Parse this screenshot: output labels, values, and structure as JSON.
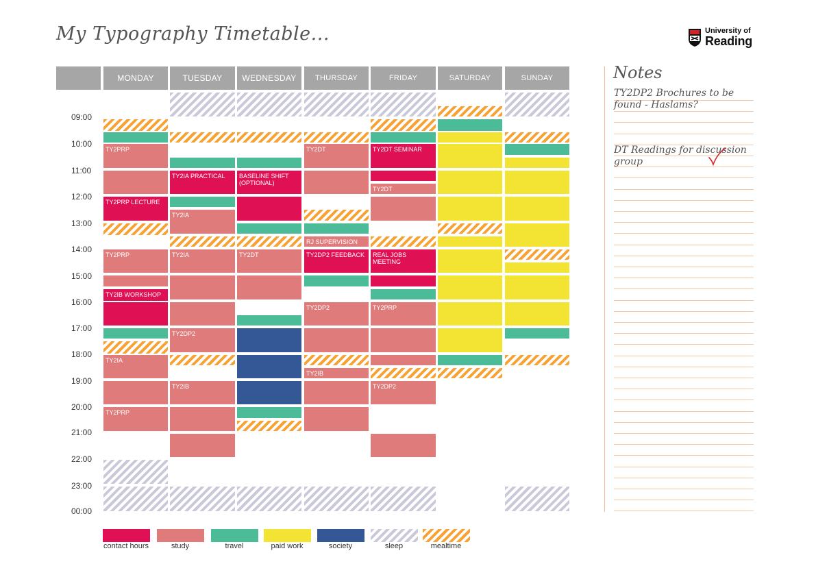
{
  "page": {
    "title": "My Typography Timetable..."
  },
  "logo": {
    "line1": "University of",
    "line2": "Reading"
  },
  "days": [
    "MONDAY",
    "TUESDAY",
    "WEDNESDAY",
    "THURSDAY",
    "FRIDAY",
    "SATURDAY",
    "SUNDAY"
  ],
  "times": [
    "09:00",
    "10:00",
    "11:00",
    "12:00",
    "13:00",
    "14:00",
    "15:00",
    "16:00",
    "17:00",
    "18:00",
    "19:00",
    "20:00",
    "21:00",
    "22:00",
    "23:00",
    "00:00"
  ],
  "colors": {
    "contact": "#e01055",
    "study": "#e07b7b",
    "travel": "#4cbb98",
    "paid": "#f3e433",
    "society": "#345795",
    "sleep": "#c9c9d9",
    "meal": "#f7a233"
  },
  "legend": [
    {
      "type": "contact",
      "label": "contact hours"
    },
    {
      "type": "study",
      "label": "study"
    },
    {
      "type": "travel",
      "label": "travel"
    },
    {
      "type": "paid",
      "label": "paid work"
    },
    {
      "type": "society",
      "label": "society"
    },
    {
      "type": "sleep",
      "label": "sleep"
    },
    {
      "type": "meal",
      "label": "mealtime"
    }
  ],
  "blocks": [
    {
      "day": 0,
      "type": "meal",
      "start": 9.1,
      "end": 9.55,
      "label": ""
    },
    {
      "day": 0,
      "type": "travel",
      "start": 9.6,
      "end": 10.0,
      "label": ""
    },
    {
      "day": 0,
      "type": "study",
      "start": 10.05,
      "end": 10.95,
      "label": "TY2PRP"
    },
    {
      "day": 0,
      "type": "study",
      "start": 11.05,
      "end": 11.95,
      "label": ""
    },
    {
      "day": 0,
      "type": "contact",
      "start": 12.05,
      "end": 12.95,
      "label": "TY2PRP LECTURE"
    },
    {
      "day": 0,
      "type": "meal",
      "start": 13.05,
      "end": 13.5,
      "label": ""
    },
    {
      "day": 0,
      "type": "study",
      "start": 14.05,
      "end": 14.95,
      "label": "TY2PRP"
    },
    {
      "day": 0,
      "type": "study",
      "start": 15.05,
      "end": 15.45,
      "label": ""
    },
    {
      "day": 0,
      "type": "contact",
      "start": 15.55,
      "end": 16.0,
      "label": "TY2IB WORKSHOP"
    },
    {
      "day": 0,
      "type": "contact",
      "start": 16.05,
      "end": 16.95,
      "label": ""
    },
    {
      "day": 0,
      "type": "travel",
      "start": 17.05,
      "end": 17.45,
      "label": ""
    },
    {
      "day": 0,
      "type": "meal",
      "start": 17.55,
      "end": 18.0,
      "label": ""
    },
    {
      "day": 0,
      "type": "study",
      "start": 18.05,
      "end": 18.95,
      "label": "TY2IA"
    },
    {
      "day": 0,
      "type": "study",
      "start": 19.05,
      "end": 19.95,
      "label": ""
    },
    {
      "day": 0,
      "type": "study",
      "start": 20.05,
      "end": 20.95,
      "label": "TY2PRP"
    },
    {
      "day": 0,
      "type": "sleep",
      "start": 22.05,
      "end": 22.95,
      "label": ""
    },
    {
      "day": 0,
      "type": "sleep",
      "start": 23.05,
      "end": 24.0,
      "label": ""
    },
    {
      "day": 1,
      "type": "sleep",
      "start": 8.1,
      "end": 9.0,
      "label": ""
    },
    {
      "day": 1,
      "type": "meal",
      "start": 9.6,
      "end": 10.0,
      "label": ""
    },
    {
      "day": 1,
      "type": "travel",
      "start": 10.55,
      "end": 10.95,
      "label": ""
    },
    {
      "day": 1,
      "type": "contact",
      "start": 11.05,
      "end": 11.95,
      "label": "TY2IA PRACTICAL"
    },
    {
      "day": 1,
      "type": "travel",
      "start": 12.05,
      "end": 12.45,
      "label": ""
    },
    {
      "day": 1,
      "type": "study",
      "start": 12.55,
      "end": 13.45,
      "label": "TY2IA"
    },
    {
      "day": 1,
      "type": "meal",
      "start": 13.55,
      "end": 13.95,
      "label": ""
    },
    {
      "day": 1,
      "type": "study",
      "start": 14.05,
      "end": 14.95,
      "label": "TY2IA"
    },
    {
      "day": 1,
      "type": "study",
      "start": 15.05,
      "end": 15.95,
      "label": ""
    },
    {
      "day": 1,
      "type": "study",
      "start": 16.05,
      "end": 16.95,
      "label": ""
    },
    {
      "day": 1,
      "type": "study",
      "start": 17.05,
      "end": 17.95,
      "label": "TY2DP2"
    },
    {
      "day": 1,
      "type": "meal",
      "start": 18.05,
      "end": 18.45,
      "label": ""
    },
    {
      "day": 1,
      "type": "study",
      "start": 19.05,
      "end": 19.95,
      "label": "TY2IB"
    },
    {
      "day": 1,
      "type": "study",
      "start": 20.05,
      "end": 20.95,
      "label": ""
    },
    {
      "day": 1,
      "type": "study",
      "start": 21.05,
      "end": 21.95,
      "label": ""
    },
    {
      "day": 1,
      "type": "sleep",
      "start": 23.05,
      "end": 24.0,
      "label": ""
    },
    {
      "day": 2,
      "type": "sleep",
      "start": 8.1,
      "end": 9.0,
      "label": ""
    },
    {
      "day": 2,
      "type": "meal",
      "start": 9.6,
      "end": 10.0,
      "label": ""
    },
    {
      "day": 2,
      "type": "travel",
      "start": 10.55,
      "end": 10.95,
      "label": ""
    },
    {
      "day": 2,
      "type": "contact",
      "start": 11.05,
      "end": 11.95,
      "label": "BASELINE SHIFT (OPTIONAL)"
    },
    {
      "day": 2,
      "type": "contact",
      "start": 12.05,
      "end": 12.95,
      "label": ""
    },
    {
      "day": 2,
      "type": "travel",
      "start": 13.05,
      "end": 13.45,
      "label": ""
    },
    {
      "day": 2,
      "type": "meal",
      "start": 13.55,
      "end": 13.95,
      "label": ""
    },
    {
      "day": 2,
      "type": "study",
      "start": 14.05,
      "end": 14.95,
      "label": "TY2DT"
    },
    {
      "day": 2,
      "type": "study",
      "start": 15.05,
      "end": 15.95,
      "label": ""
    },
    {
      "day": 2,
      "type": "travel",
      "start": 16.55,
      "end": 16.95,
      "label": ""
    },
    {
      "day": 2,
      "type": "society",
      "start": 17.05,
      "end": 17.95,
      "label": ""
    },
    {
      "day": 2,
      "type": "society",
      "start": 18.05,
      "end": 18.95,
      "label": ""
    },
    {
      "day": 2,
      "type": "society",
      "start": 19.05,
      "end": 19.95,
      "label": ""
    },
    {
      "day": 2,
      "type": "travel",
      "start": 20.05,
      "end": 20.45,
      "label": ""
    },
    {
      "day": 2,
      "type": "meal",
      "start": 20.55,
      "end": 20.95,
      "label": ""
    },
    {
      "day": 2,
      "type": "sleep",
      "start": 23.05,
      "end": 24.0,
      "label": ""
    },
    {
      "day": 3,
      "type": "sleep",
      "start": 8.1,
      "end": 9.0,
      "label": ""
    },
    {
      "day": 3,
      "type": "meal",
      "start": 9.6,
      "end": 10.0,
      "label": ""
    },
    {
      "day": 3,
      "type": "study",
      "start": 10.05,
      "end": 10.95,
      "label": "TY2DT"
    },
    {
      "day": 3,
      "type": "study",
      "start": 11.05,
      "end": 11.95,
      "label": ""
    },
    {
      "day": 3,
      "type": "meal",
      "start": 12.55,
      "end": 12.95,
      "label": ""
    },
    {
      "day": 3,
      "type": "travel",
      "start": 13.05,
      "end": 13.45,
      "label": ""
    },
    {
      "day": 3,
      "type": "study",
      "start": 13.55,
      "end": 13.95,
      "label": "RJ SUPERVISION"
    },
    {
      "day": 3,
      "type": "contact",
      "start": 14.05,
      "end": 14.95,
      "label": "TY2DP2 FEEDBACK"
    },
    {
      "day": 3,
      "type": "travel",
      "start": 15.05,
      "end": 15.45,
      "label": ""
    },
    {
      "day": 3,
      "type": "study",
      "start": 16.05,
      "end": 16.95,
      "label": "TY2DP2"
    },
    {
      "day": 3,
      "type": "study",
      "start": 17.05,
      "end": 17.95,
      "label": ""
    },
    {
      "day": 3,
      "type": "meal",
      "start": 18.05,
      "end": 18.45,
      "label": ""
    },
    {
      "day": 3,
      "type": "study",
      "start": 18.55,
      "end": 18.95,
      "label": "TY2IB"
    },
    {
      "day": 3,
      "type": "study",
      "start": 19.05,
      "end": 19.95,
      "label": ""
    },
    {
      "day": 3,
      "type": "study",
      "start": 20.05,
      "end": 20.95,
      "label": ""
    },
    {
      "day": 3,
      "type": "sleep",
      "start": 23.05,
      "end": 24.0,
      "label": ""
    },
    {
      "day": 4,
      "type": "sleep",
      "start": 8.1,
      "end": 9.0,
      "label": ""
    },
    {
      "day": 4,
      "type": "meal",
      "start": 9.1,
      "end": 9.55,
      "label": ""
    },
    {
      "day": 4,
      "type": "travel",
      "start": 9.6,
      "end": 10.0,
      "label": ""
    },
    {
      "day": 4,
      "type": "contact",
      "start": 10.05,
      "end": 10.95,
      "label": "TY2DT SEMINAR"
    },
    {
      "day": 4,
      "type": "contact",
      "start": 11.05,
      "end": 11.45,
      "label": ""
    },
    {
      "day": 4,
      "type": "study",
      "start": 11.55,
      "end": 11.95,
      "label": "TY2DT"
    },
    {
      "day": 4,
      "type": "study",
      "start": 12.05,
      "end": 12.95,
      "label": ""
    },
    {
      "day": 4,
      "type": "meal",
      "start": 13.55,
      "end": 13.95,
      "label": ""
    },
    {
      "day": 4,
      "type": "contact",
      "start": 14.05,
      "end": 14.95,
      "label": "REAL JOBS MEETING"
    },
    {
      "day": 4,
      "type": "contact",
      "start": 15.05,
      "end": 15.45,
      "label": ""
    },
    {
      "day": 4,
      "type": "travel",
      "start": 15.55,
      "end": 15.95,
      "label": ""
    },
    {
      "day": 4,
      "type": "study",
      "start": 16.05,
      "end": 16.95,
      "label": "TY2PRP"
    },
    {
      "day": 4,
      "type": "study",
      "start": 17.05,
      "end": 17.95,
      "label": ""
    },
    {
      "day": 4,
      "type": "study",
      "start": 18.05,
      "end": 18.45,
      "label": ""
    },
    {
      "day": 4,
      "type": "meal",
      "start": 18.55,
      "end": 18.95,
      "label": ""
    },
    {
      "day": 4,
      "type": "study",
      "start": 19.05,
      "end": 19.95,
      "label": "TY2DP2"
    },
    {
      "day": 4,
      "type": "study",
      "start": 21.05,
      "end": 21.95,
      "label": ""
    },
    {
      "day": 4,
      "type": "sleep",
      "start": 23.05,
      "end": 24.0,
      "label": ""
    },
    {
      "day": 5,
      "type": "meal",
      "start": 8.6,
      "end": 9.0,
      "label": ""
    },
    {
      "day": 5,
      "type": "travel",
      "start": 9.1,
      "end": 9.55,
      "label": ""
    },
    {
      "day": 5,
      "type": "paid",
      "start": 9.6,
      "end": 10.0,
      "label": ""
    },
    {
      "day": 5,
      "type": "paid",
      "start": 10.05,
      "end": 10.95,
      "label": ""
    },
    {
      "day": 5,
      "type": "paid",
      "start": 11.05,
      "end": 11.95,
      "label": ""
    },
    {
      "day": 5,
      "type": "paid",
      "start": 12.05,
      "end": 12.95,
      "label": ""
    },
    {
      "day": 5,
      "type": "meal",
      "start": 13.05,
      "end": 13.45,
      "label": ""
    },
    {
      "day": 5,
      "type": "paid",
      "start": 13.55,
      "end": 13.95,
      "label": ""
    },
    {
      "day": 5,
      "type": "paid",
      "start": 14.05,
      "end": 14.95,
      "label": ""
    },
    {
      "day": 5,
      "type": "paid",
      "start": 15.05,
      "end": 15.95,
      "label": ""
    },
    {
      "day": 5,
      "type": "paid",
      "start": 16.05,
      "end": 16.95,
      "label": ""
    },
    {
      "day": 5,
      "type": "paid",
      "start": 17.05,
      "end": 17.95,
      "label": ""
    },
    {
      "day": 5,
      "type": "travel",
      "start": 18.05,
      "end": 18.45,
      "label": ""
    },
    {
      "day": 5,
      "type": "meal",
      "start": 18.55,
      "end": 18.95,
      "label": ""
    },
    {
      "day": 6,
      "type": "sleep",
      "start": 8.1,
      "end": 9.0,
      "label": ""
    },
    {
      "day": 6,
      "type": "meal",
      "start": 9.6,
      "end": 10.0,
      "label": ""
    },
    {
      "day": 6,
      "type": "travel",
      "start": 10.05,
      "end": 10.45,
      "label": ""
    },
    {
      "day": 6,
      "type": "paid",
      "start": 10.55,
      "end": 10.95,
      "label": ""
    },
    {
      "day": 6,
      "type": "paid",
      "start": 11.05,
      "end": 11.95,
      "label": ""
    },
    {
      "day": 6,
      "type": "paid",
      "start": 12.05,
      "end": 12.95,
      "label": ""
    },
    {
      "day": 6,
      "type": "paid",
      "start": 13.05,
      "end": 13.95,
      "label": ""
    },
    {
      "day": 6,
      "type": "meal",
      "start": 14.05,
      "end": 14.45,
      "label": ""
    },
    {
      "day": 6,
      "type": "paid",
      "start": 14.55,
      "end": 14.95,
      "label": ""
    },
    {
      "day": 6,
      "type": "paid",
      "start": 15.05,
      "end": 15.95,
      "label": ""
    },
    {
      "day": 6,
      "type": "paid",
      "start": 16.05,
      "end": 16.95,
      "label": ""
    },
    {
      "day": 6,
      "type": "travel",
      "start": 17.05,
      "end": 17.45,
      "label": ""
    },
    {
      "day": 6,
      "type": "meal",
      "start": 18.05,
      "end": 18.45,
      "label": ""
    },
    {
      "day": 6,
      "type": "sleep",
      "start": 23.05,
      "end": 24.0,
      "label": ""
    }
  ],
  "notes": {
    "title": "Notes",
    "entries": [
      "TY2DP2 Brochures to be found - Haslams?",
      "DT Readings for discussion group"
    ]
  }
}
